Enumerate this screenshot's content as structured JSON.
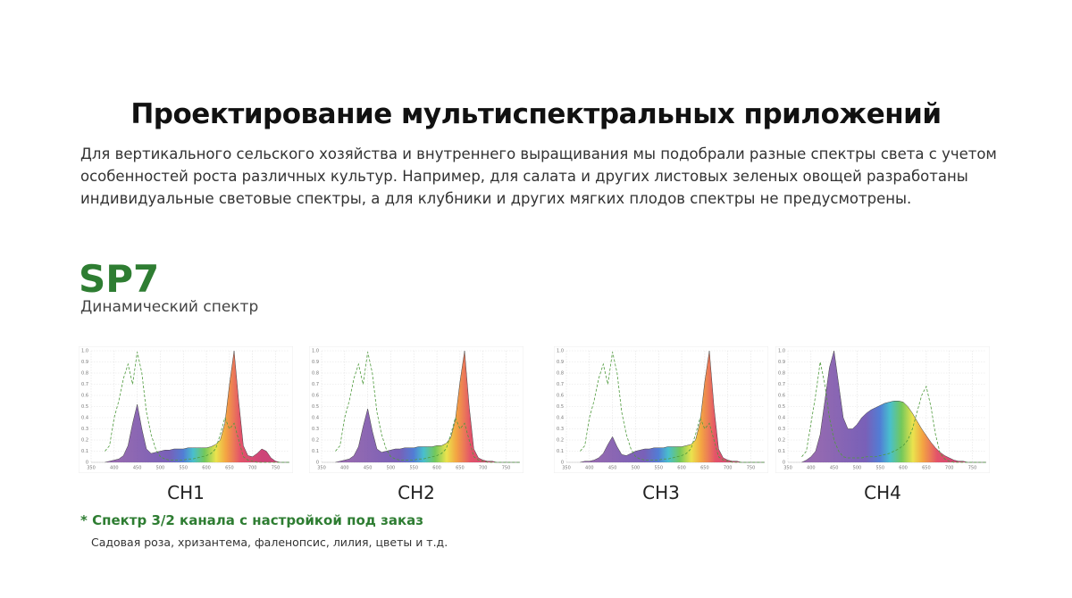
{
  "header": {
    "title": "Проектирование мультиспектральных приложений",
    "description": "Для вертикального сельского хозяйства и внутреннего выращивания мы подобрали разные спектры света с учетом особенностей роста различных культур. Например, для салата и других листовых зеленых овощей разработаны индивидуальные световые спектры, а для клубники и других мягких плодов спектры не предусмотрены."
  },
  "product": {
    "name": "SP7",
    "subtitle": "Динамический спектр"
  },
  "chart_data": [
    {
      "type": "area",
      "title": "CH1",
      "grid": true,
      "xlim": [
        350,
        780
      ],
      "ylim": [
        0,
        1
      ],
      "xticks": [
        350,
        400,
        450,
        500,
        550,
        600,
        650,
        700,
        750
      ],
      "yticks": [
        0,
        0.1,
        0.2,
        0.3,
        0.4,
        0.5,
        0.6,
        0.7,
        0.8,
        0.9,
        {
          "value": 1,
          "label": "1.0"
        }
      ],
      "x": [
        380,
        390,
        400,
        410,
        420,
        430,
        440,
        450,
        460,
        470,
        480,
        490,
        500,
        510,
        520,
        530,
        540,
        550,
        560,
        570,
        580,
        590,
        600,
        610,
        620,
        630,
        640,
        650,
        660,
        670,
        680,
        690,
        700,
        710,
        720,
        730,
        740,
        750,
        760,
        770,
        780
      ],
      "series": [
        {
          "color": "#444444",
          "fill": true,
          "values": [
            0,
            0.01,
            0.02,
            0.03,
            0.06,
            0.15,
            0.35,
            0.52,
            0.3,
            0.12,
            0.08,
            0.09,
            0.1,
            0.11,
            0.11,
            0.12,
            0.12,
            0.12,
            0.13,
            0.13,
            0.13,
            0.13,
            0.13,
            0.14,
            0.16,
            0.2,
            0.35,
            0.7,
            1.0,
            0.55,
            0.15,
            0.06,
            0.05,
            0.08,
            0.12,
            0.1,
            0.04,
            0.01,
            0,
            0,
            0
          ]
        },
        {
          "color": "#4e9a3c",
          "dash": true,
          "values": [
            0.1,
            0.15,
            0.4,
            0.55,
            0.75,
            0.88,
            0.7,
            0.99,
            0.8,
            0.45,
            0.25,
            0.12,
            0.05,
            0.03,
            0.02,
            0.02,
            0.02,
            0.02,
            0.03,
            0.03,
            0.04,
            0.05,
            0.06,
            0.08,
            0.12,
            0.25,
            0.4,
            0.3,
            0.35,
            0.2,
            0.05,
            0.02,
            0.01,
            0,
            0,
            0,
            0,
            0,
            0,
            0,
            0
          ]
        }
      ]
    },
    {
      "type": "area",
      "title": "CH2",
      "grid": true,
      "xlim": [
        350,
        780
      ],
      "ylim": [
        0,
        1
      ],
      "xticks": [
        350,
        400,
        450,
        500,
        550,
        600,
        650,
        700,
        750
      ],
      "yticks": [
        0,
        0.1,
        0.2,
        0.3,
        0.4,
        0.5,
        0.6,
        0.7,
        0.8,
        0.9,
        {
          "value": 1,
          "label": "1.0"
        }
      ],
      "x": [
        380,
        390,
        400,
        410,
        420,
        430,
        440,
        450,
        460,
        470,
        480,
        490,
        500,
        510,
        520,
        530,
        540,
        550,
        560,
        570,
        580,
        590,
        600,
        610,
        620,
        630,
        640,
        650,
        660,
        670,
        680,
        690,
        700,
        710,
        720,
        730,
        740,
        750,
        760,
        770,
        780
      ],
      "series": [
        {
          "color": "#444444",
          "fill": true,
          "values": [
            0,
            0.01,
            0.02,
            0.03,
            0.06,
            0.14,
            0.32,
            0.48,
            0.28,
            0.12,
            0.09,
            0.1,
            0.11,
            0.12,
            0.12,
            0.13,
            0.13,
            0.13,
            0.14,
            0.14,
            0.14,
            0.14,
            0.15,
            0.15,
            0.17,
            0.22,
            0.38,
            0.72,
            1.0,
            0.5,
            0.12,
            0.04,
            0.02,
            0.01,
            0.01,
            0,
            0,
            0,
            0,
            0,
            0
          ]
        },
        {
          "color": "#4e9a3c",
          "dash": true,
          "values": [
            0.1,
            0.15,
            0.4,
            0.55,
            0.75,
            0.88,
            0.7,
            0.99,
            0.8,
            0.45,
            0.25,
            0.12,
            0.05,
            0.03,
            0.02,
            0.02,
            0.02,
            0.02,
            0.03,
            0.03,
            0.04,
            0.05,
            0.06,
            0.08,
            0.12,
            0.25,
            0.4,
            0.3,
            0.35,
            0.2,
            0.05,
            0.02,
            0.01,
            0,
            0,
            0,
            0,
            0,
            0,
            0,
            0
          ]
        }
      ]
    },
    {
      "type": "area",
      "title": "CH3",
      "grid": true,
      "xlim": [
        350,
        780
      ],
      "ylim": [
        0,
        1
      ],
      "xticks": [
        350,
        400,
        450,
        500,
        550,
        600,
        650,
        700,
        750
      ],
      "yticks": [
        0,
        0.1,
        0.2,
        0.3,
        0.4,
        0.5,
        0.6,
        0.7,
        0.8,
        0.9,
        {
          "value": 1,
          "label": "1.0"
        }
      ],
      "x": [
        380,
        390,
        400,
        410,
        420,
        430,
        440,
        450,
        460,
        470,
        480,
        490,
        500,
        510,
        520,
        530,
        540,
        550,
        560,
        570,
        580,
        590,
        600,
        610,
        620,
        630,
        640,
        650,
        660,
        670,
        680,
        690,
        700,
        710,
        720,
        730,
        740,
        750,
        760,
        770,
        780
      ],
      "series": [
        {
          "color": "#444444",
          "fill": true,
          "values": [
            0,
            0.01,
            0.01,
            0.02,
            0.04,
            0.08,
            0.16,
            0.23,
            0.14,
            0.07,
            0.06,
            0.08,
            0.1,
            0.11,
            0.12,
            0.12,
            0.13,
            0.13,
            0.13,
            0.14,
            0.14,
            0.14,
            0.14,
            0.15,
            0.16,
            0.2,
            0.36,
            0.72,
            1.0,
            0.5,
            0.12,
            0.04,
            0.02,
            0.01,
            0.01,
            0,
            0,
            0,
            0,
            0,
            0
          ]
        },
        {
          "color": "#4e9a3c",
          "dash": true,
          "values": [
            0.1,
            0.15,
            0.4,
            0.55,
            0.75,
            0.88,
            0.7,
            0.99,
            0.8,
            0.45,
            0.25,
            0.12,
            0.05,
            0.03,
            0.02,
            0.02,
            0.02,
            0.02,
            0.03,
            0.03,
            0.04,
            0.05,
            0.06,
            0.08,
            0.12,
            0.25,
            0.4,
            0.3,
            0.35,
            0.2,
            0.05,
            0.02,
            0.01,
            0,
            0,
            0,
            0,
            0,
            0,
            0,
            0
          ]
        }
      ]
    },
    {
      "type": "area",
      "title": "CH4",
      "grid": true,
      "xlim": [
        350,
        780
      ],
      "ylim": [
        0,
        1
      ],
      "xticks": [
        350,
        400,
        450,
        500,
        550,
        600,
        650,
        700,
        750
      ],
      "yticks": [
        0,
        0.1,
        0.2,
        0.3,
        0.4,
        0.5,
        0.6,
        0.7,
        0.8,
        0.9,
        {
          "value": 1,
          "label": "1.0"
        }
      ],
      "x": [
        380,
        390,
        400,
        410,
        420,
        430,
        440,
        450,
        460,
        470,
        480,
        490,
        500,
        510,
        520,
        530,
        540,
        550,
        560,
        570,
        580,
        590,
        600,
        610,
        620,
        630,
        640,
        650,
        660,
        670,
        680,
        690,
        700,
        710,
        720,
        730,
        740,
        750,
        760,
        770,
        780
      ],
      "series": [
        {
          "color": "#444444",
          "fill": true,
          "values": [
            0,
            0.02,
            0.05,
            0.1,
            0.25,
            0.55,
            0.85,
            1.0,
            0.7,
            0.4,
            0.3,
            0.3,
            0.34,
            0.4,
            0.44,
            0.47,
            0.49,
            0.51,
            0.53,
            0.54,
            0.55,
            0.55,
            0.54,
            0.5,
            0.44,
            0.37,
            0.3,
            0.24,
            0.18,
            0.13,
            0.09,
            0.06,
            0.04,
            0.02,
            0.01,
            0.01,
            0,
            0,
            0,
            0,
            0
          ]
        },
        {
          "color": "#4e9a3c",
          "dash": true,
          "values": [
            0.05,
            0.1,
            0.35,
            0.6,
            0.9,
            0.7,
            0.4,
            0.2,
            0.1,
            0.05,
            0.04,
            0.04,
            0.04,
            0.04,
            0.05,
            0.05,
            0.05,
            0.06,
            0.07,
            0.08,
            0.1,
            0.12,
            0.15,
            0.2,
            0.3,
            0.45,
            0.6,
            0.68,
            0.5,
            0.25,
            0.08,
            0.03,
            0.01,
            0,
            0,
            0,
            0,
            0,
            0,
            0,
            0
          ]
        }
      ]
    }
  ],
  "note": {
    "title": "* Спектр 3/2 канала с настройкой под заказ",
    "text": "Садовая роза, хризантема, фаленопсис, лилия, цветы и т.д."
  }
}
